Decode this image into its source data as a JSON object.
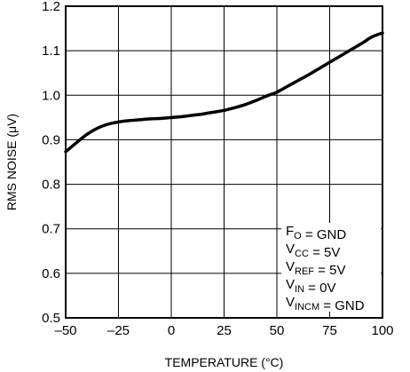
{
  "chart_data": {
    "type": "line",
    "xlabel": "TEMPERATURE (°C)",
    "ylabel": "RMS NOISE (μV)",
    "xlim": [
      -50,
      100
    ],
    "ylim": [
      0.5,
      1.2
    ],
    "x_ticks": [
      -50,
      -25,
      0,
      25,
      50,
      75,
      100
    ],
    "y_ticks": [
      0.5,
      0.6,
      0.7,
      0.8,
      0.9,
      1.0,
      1.1,
      1.2
    ],
    "x_tick_labels": [
      "–50",
      "–25",
      "0",
      "25",
      "50",
      "75",
      "100"
    ],
    "y_tick_labels": [
      "0.5",
      "0.6",
      "0.7",
      "0.8",
      "0.9",
      "1.0",
      "1.1",
      "1.2"
    ],
    "grid": true,
    "series": [
      {
        "x": [
          -50,
          -45,
          -40,
          -35,
          -30,
          -25,
          -20,
          -15,
          -10,
          -5,
          0,
          5,
          10,
          15,
          20,
          25,
          30,
          35,
          40,
          45,
          50,
          55,
          60,
          65,
          70,
          75,
          80,
          85,
          90,
          95,
          100
        ],
        "y": [
          0.873,
          0.893,
          0.912,
          0.926,
          0.935,
          0.94,
          0.943,
          0.945,
          0.947,
          0.948,
          0.95,
          0.952,
          0.955,
          0.958,
          0.962,
          0.966,
          0.972,
          0.979,
          0.988,
          0.998,
          1.007,
          1.02,
          1.033,
          1.046,
          1.06,
          1.074,
          1.088,
          1.102,
          1.116,
          1.131,
          1.14
        ]
      }
    ],
    "annotations": [
      {
        "segments": [
          {
            "text": "F"
          },
          {
            "text": "O",
            "sub": true
          },
          {
            "text": " = GND"
          }
        ]
      },
      {
        "segments": [
          {
            "text": "V"
          },
          {
            "text": "CC",
            "sub": true
          },
          {
            "text": " = 5V"
          }
        ]
      },
      {
        "segments": [
          {
            "text": "V"
          },
          {
            "text": "REF",
            "sub": true
          },
          {
            "text": " = 5V"
          }
        ]
      },
      {
        "segments": [
          {
            "text": "V"
          },
          {
            "text": "IN",
            "sub": true
          },
          {
            "text": " = 0V"
          }
        ]
      },
      {
        "segments": [
          {
            "text": "V"
          },
          {
            "text": "INCM",
            "sub": true
          },
          {
            "text": " = GND"
          }
        ]
      }
    ]
  }
}
